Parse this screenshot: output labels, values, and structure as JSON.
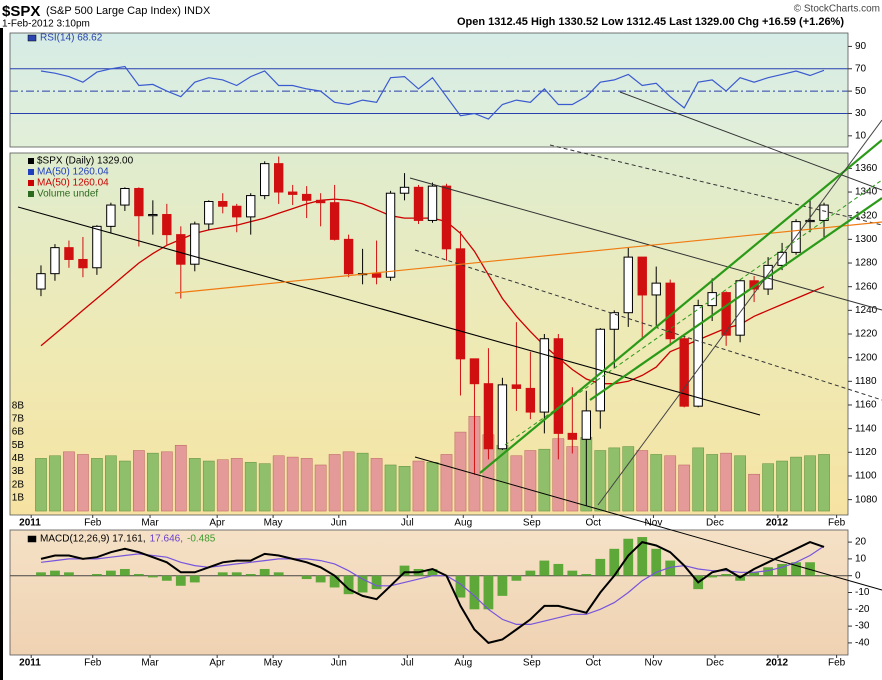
{
  "header": {
    "symbol": "$SPX",
    "name": "(S&P 500 Large Cap Index) INDX",
    "date": "1-Feb-2012 3:10pm",
    "quote": "Open 1312.45  High 1330.52  Low 1312.45  Last 1329.00  Chg +16.59 (+1.26%)",
    "credit": "© StockCharts.com"
  },
  "chart_data": [
    {
      "type": "line",
      "legend": [
        {
          "label": "RSI(14) 68.62",
          "color": "#2a44b0"
        }
      ],
      "series": [
        {
          "color": "#3a5ad0",
          "values": [
            68,
            66,
            63,
            58,
            67,
            70,
            72,
            55,
            56,
            50,
            45,
            58,
            62,
            60,
            55,
            63,
            68,
            55,
            55,
            52,
            50,
            40,
            38,
            42,
            40,
            62,
            63,
            52,
            62,
            45,
            28,
            30,
            25,
            38,
            42,
            40,
            52,
            38,
            38,
            45,
            58,
            60,
            65,
            55,
            57,
            45,
            35,
            58,
            60,
            50,
            62,
            58,
            62,
            65,
            68,
            64,
            68.62
          ]
        }
      ],
      "xlim": [
        -1.5,
        57.5
      ],
      "ylim": [
        0,
        102
      ],
      "yticks": [
        10,
        30,
        50,
        70,
        90
      ],
      "reference_lines": [
        70,
        50,
        30
      ]
    },
    {
      "type": "candlestick",
      "legend": [
        {
          "label": "$SPX (Daily) 1329.00",
          "color": "#000000"
        },
        {
          "label": "MA(50) 1260.04",
          "color": "#1f3fbf"
        },
        {
          "label": "MA(50) 1260.04",
          "color": "#cc0000"
        },
        {
          "label": "Volume undef",
          "color": "#2d6a1f"
        }
      ],
      "open": [
        1258,
        1271,
        1293,
        1283,
        1276,
        1311,
        1329,
        1343,
        1320,
        1321,
        1304,
        1279,
        1313,
        1332,
        1328,
        1319,
        1337,
        1364,
        1340,
        1338,
        1333,
        1331,
        1300,
        1271,
        1271,
        1268,
        1339,
        1344,
        1316,
        1345,
        1292,
        1199,
        1178,
        1123,
        1177,
        1174,
        1154,
        1216,
        1136,
        1131,
        1155,
        1224,
        1238,
        1285,
        1253,
        1263,
        1216,
        1159,
        1244,
        1255,
        1219,
        1265,
        1258,
        1278,
        1289,
        1315,
        1316
      ],
      "high": [
        1278,
        1296,
        1299,
        1302,
        1312,
        1331,
        1344,
        1344,
        1333,
        1330,
        1311,
        1315,
        1333,
        1339,
        1330,
        1339,
        1366,
        1370,
        1346,
        1345,
        1339,
        1346,
        1304,
        1292,
        1299,
        1341,
        1356,
        1346,
        1348,
        1347,
        1307,
        1199,
        1208,
        1183,
        1230,
        1205,
        1220,
        1220,
        1175,
        1172,
        1225,
        1240,
        1293,
        1285,
        1277,
        1266,
        1218,
        1249,
        1267,
        1256,
        1266,
        1269,
        1285,
        1297,
        1317,
        1333,
        1331
      ],
      "low": [
        1252,
        1265,
        1276,
        1268,
        1270,
        1305,
        1324,
        1294,
        1304,
        1295,
        1250,
        1273,
        1308,
        1322,
        1306,
        1304,
        1334,
        1330,
        1329,
        1318,
        1311,
        1299,
        1268,
        1262,
        1262,
        1265,
        1333,
        1313,
        1314,
        1282,
        1168,
        1101,
        1114,
        1122,
        1155,
        1148,
        1136,
        1114,
        1119,
        1075,
        1140,
        1191,
        1226,
        1215,
        1227,
        1210,
        1158,
        1158,
        1231,
        1210,
        1213,
        1247,
        1253,
        1274,
        1287,
        1306,
        1300
      ],
      "close": [
        1271,
        1293,
        1283,
        1276,
        1311,
        1329,
        1343,
        1320,
        1321,
        1304,
        1279,
        1313,
        1332,
        1328,
        1319,
        1337,
        1364,
        1340,
        1338,
        1333,
        1331,
        1300,
        1271,
        1271,
        1268,
        1339,
        1344,
        1316,
        1345,
        1292,
        1199,
        1178,
        1123,
        1177,
        1174,
        1154,
        1216,
        1136,
        1131,
        1155,
        1224,
        1238,
        1285,
        1253,
        1263,
        1216,
        1159,
        1244,
        1255,
        1219,
        1265,
        1258,
        1278,
        1289,
        1315,
        1316,
        1329
      ],
      "series": [
        {
          "color": "#cc0000",
          "values": [
            1210,
            1220,
            1230,
            1240,
            1250,
            1260,
            1270,
            1280,
            1288,
            1295,
            1300,
            1305,
            1308,
            1310,
            1312,
            1315,
            1318,
            1322,
            1326,
            1330,
            1333,
            1334,
            1333,
            1330,
            1325,
            1320,
            1318,
            1318,
            1318,
            1315,
            1305,
            1290,
            1270,
            1250,
            1235,
            1222,
            1210,
            1200,
            1190,
            1182,
            1178,
            1178,
            1180,
            1185,
            1192,
            1205,
            1210,
            1215,
            1220,
            1225,
            1228,
            1235,
            1240,
            1245,
            1250,
            1255,
            1260
          ]
        }
      ],
      "volume": [
        4.0,
        4.2,
        4.5,
        4.3,
        4.0,
        4.2,
        3.8,
        4.6,
        4.4,
        4.5,
        5.0,
        4.0,
        3.8,
        3.9,
        4.0,
        3.7,
        3.6,
        4.2,
        4.1,
        4.0,
        3.5,
        4.3,
        4.5,
        4.4,
        4.0,
        3.5,
        3.4,
        3.8,
        3.7,
        4.3,
        6.0,
        7.2,
        5.8,
        5.0,
        4.2,
        4.6,
        4.7,
        5.5,
        4.9,
        5.6,
        4.6,
        4.8,
        4.9,
        4.6,
        4.3,
        4.2,
        3.5,
        4.8,
        4.3,
        4.4,
        4.2,
        2.8,
        3.6,
        3.8,
        4.1,
        4.2,
        4.3
      ],
      "xlim": [
        -1.5,
        57.5
      ],
      "ylim": [
        1067,
        1373
      ],
      "yticks": [
        1080,
        1100,
        1120,
        1140,
        1160,
        1180,
        1200,
        1220,
        1240,
        1260,
        1280,
        1300,
        1320,
        1340,
        1360
      ],
      "y2lim": [
        -0.3,
        27.2
      ],
      "y2ticks": [
        {
          "value": 1,
          "label": "1B"
        },
        {
          "value": 2,
          "label": "2B"
        },
        {
          "value": 3,
          "label": "3B"
        },
        {
          "value": 4,
          "label": "4B"
        },
        {
          "value": 5,
          "label": "5B"
        },
        {
          "value": 6,
          "label": "6B"
        },
        {
          "value": 7,
          "label": "7B"
        },
        {
          "value": 8,
          "label": "8B"
        }
      ],
      "xticks": [
        {
          "value": -0.7,
          "label": "2011"
        },
        {
          "value": 3.7,
          "label": "Feb"
        },
        {
          "value": 7.8,
          "label": "Mar"
        },
        {
          "value": 12.6,
          "label": "Apr"
        },
        {
          "value": 16.6,
          "label": "May"
        },
        {
          "value": 21.3,
          "label": "Jun"
        },
        {
          "value": 26.2,
          "label": "Jul"
        },
        {
          "value": 30.2,
          "label": "Aug"
        },
        {
          "value": 35.1,
          "label": "Sep"
        },
        {
          "value": 39.5,
          "label": "Oct"
        },
        {
          "value": 43.8,
          "label": "Nov"
        },
        {
          "value": 48.2,
          "label": "Dec"
        },
        {
          "value": 52.7,
          "label": "2012"
        },
        {
          "value": 56.9,
          "label": "Feb"
        }
      ]
    },
    {
      "type": "macd",
      "legend": [
        {
          "label": "MACD(12,26,9) 17.161,",
          "color": "#000000"
        },
        {
          "label": "17.646,",
          "color": "#6a3fd0"
        },
        {
          "label": "-0.485",
          "color": "#3f9a2f"
        }
      ],
      "series": [
        {
          "color": "#000000",
          "values": [
            10,
            12,
            12,
            10,
            11,
            14,
            16,
            14,
            11,
            8,
            2,
            2,
            5,
            8,
            9,
            9,
            13,
            12,
            10,
            8,
            5,
            0,
            -8,
            -12,
            -14,
            -6,
            2,
            2,
            4,
            0,
            -18,
            -32,
            -40,
            -38,
            -32,
            -26,
            -18,
            -18,
            -20,
            -22,
            -10,
            0,
            12,
            20,
            18,
            14,
            6,
            -4,
            2,
            4,
            -1,
            4,
            8,
            12,
            16,
            20,
            17.161
          ]
        },
        {
          "color": "#7755dd",
          "values": [
            8,
            9,
            10,
            10,
            10,
            11,
            12,
            13,
            12,
            11,
            8,
            6,
            5,
            6,
            7,
            8,
            9,
            10,
            10,
            10,
            9,
            7,
            3,
            -2,
            -6,
            -6,
            -4,
            -2,
            0,
            0,
            -5,
            -12,
            -20,
            -26,
            -29,
            -29,
            -27,
            -25,
            -23,
            -23,
            -20,
            -16,
            -10,
            -3,
            2,
            5,
            6,
            4,
            3,
            3,
            2,
            2,
            3,
            5,
            8,
            12,
            17.646
          ]
        }
      ],
      "histogram": {
        "color": "#5ea83a",
        "values": [
          2,
          3,
          2,
          0,
          1,
          3,
          4,
          1,
          -1,
          -3,
          -6,
          -4,
          0,
          2,
          2,
          1,
          4,
          2,
          0,
          -2,
          -4,
          -7,
          -11,
          -10,
          -8,
          0,
          6,
          4,
          4,
          0,
          -13,
          -20,
          -20,
          -12,
          -3,
          3,
          9,
          7,
          3,
          1,
          10,
          16,
          22,
          23,
          16,
          9,
          0,
          -8,
          -1,
          1,
          -3,
          2,
          5,
          7,
          8,
          8,
          -0.485
        ]
      },
      "xlim": [
        -1.5,
        57.5
      ],
      "ylim": [
        -47.2,
        27.2
      ],
      "yticks": [
        20,
        10,
        0,
        -10,
        -20,
        -30,
        -40
      ],
      "reference_lines": [
        0
      ],
      "xticks": [
        {
          "value": -0.7,
          "label": "2011"
        },
        {
          "value": 3.7,
          "label": "Feb"
        },
        {
          "value": 7.8,
          "label": "Mar"
        },
        {
          "value": 12.6,
          "label": "Apr"
        },
        {
          "value": 16.6,
          "label": "May"
        },
        {
          "value": 21.3,
          "label": "Jun"
        },
        {
          "value": 26.2,
          "label": "Jul"
        },
        {
          "value": 30.2,
          "label": "Aug"
        },
        {
          "value": 35.1,
          "label": "Sep"
        },
        {
          "value": 39.5,
          "label": "Oct"
        },
        {
          "value": 43.8,
          "label": "Nov"
        },
        {
          "value": 48.2,
          "label": "Dec"
        },
        {
          "value": 52.7,
          "label": "2012"
        },
        {
          "value": 56.9,
          "label": "Feb"
        }
      ]
    }
  ]
}
